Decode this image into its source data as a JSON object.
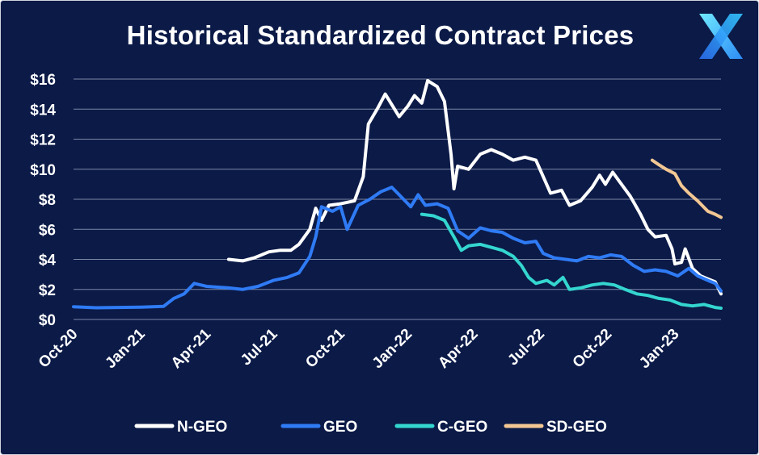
{
  "chart_data": {
    "type": "line",
    "title": "Historical Standardized Contract Prices",
    "xlabel": "",
    "ylabel": "",
    "ylim": [
      0,
      16
    ],
    "y_ticks": [
      "$0",
      "$2",
      "$4",
      "$6",
      "$8",
      "$10",
      "$12",
      "$14",
      "$16"
    ],
    "y_tick_values": [
      0,
      2,
      4,
      6,
      8,
      10,
      12,
      14,
      16
    ],
    "x_ticks": [
      "Oct-20",
      "Jan-21",
      "Apr-21",
      "Jul-21",
      "Oct-21",
      "Jan-22",
      "Apr-22",
      "Jul-22",
      "Oct-22",
      "Jan-23"
    ],
    "x_tick_dates": [
      "2020-10-01",
      "2021-01-01",
      "2021-04-01",
      "2021-07-01",
      "2021-10-01",
      "2022-01-01",
      "2022-04-01",
      "2022-07-01",
      "2022-10-01",
      "2023-01-01"
    ],
    "grid": "horizontal",
    "legend": "bottom",
    "series": [
      {
        "name": "N-GEO",
        "color": "#ffffff",
        "points": [
          [
            "2021-05-01",
            4.0
          ],
          [
            "2021-05-20",
            3.9
          ],
          [
            "2021-06-05",
            4.1
          ],
          [
            "2021-06-25",
            4.5
          ],
          [
            "2021-07-10",
            4.6
          ],
          [
            "2021-07-25",
            4.6
          ],
          [
            "2021-08-05",
            5.0
          ],
          [
            "2021-08-20",
            6.0
          ],
          [
            "2021-08-28",
            7.4
          ],
          [
            "2021-09-05",
            6.6
          ],
          [
            "2021-09-15",
            7.6
          ],
          [
            "2021-10-01",
            7.7
          ],
          [
            "2021-10-20",
            7.9
          ],
          [
            "2021-11-01",
            9.5
          ],
          [
            "2021-11-08",
            13.0
          ],
          [
            "2021-11-20",
            14.0
          ],
          [
            "2021-12-01",
            15.0
          ],
          [
            "2021-12-10",
            14.3
          ],
          [
            "2021-12-20",
            13.5
          ],
          [
            "2022-01-01",
            14.2
          ],
          [
            "2022-01-10",
            14.9
          ],
          [
            "2022-01-20",
            14.4
          ],
          [
            "2022-01-28",
            15.9
          ],
          [
            "2022-02-10",
            15.5
          ],
          [
            "2022-02-20",
            14.5
          ],
          [
            "2022-03-01",
            11.0
          ],
          [
            "2022-03-05",
            8.7
          ],
          [
            "2022-03-10",
            10.2
          ],
          [
            "2022-03-25",
            10.0
          ],
          [
            "2022-04-10",
            11.0
          ],
          [
            "2022-04-25",
            11.3
          ],
          [
            "2022-05-10",
            11.0
          ],
          [
            "2022-05-25",
            10.6
          ],
          [
            "2022-06-10",
            10.8
          ],
          [
            "2022-06-25",
            10.6
          ],
          [
            "2022-07-05",
            9.5
          ],
          [
            "2022-07-15",
            8.4
          ],
          [
            "2022-07-30",
            8.6
          ],
          [
            "2022-08-10",
            7.6
          ],
          [
            "2022-08-25",
            7.9
          ],
          [
            "2022-09-10",
            8.8
          ],
          [
            "2022-09-20",
            9.6
          ],
          [
            "2022-09-28",
            9.0
          ],
          [
            "2022-10-08",
            9.8
          ],
          [
            "2022-10-20",
            9.0
          ],
          [
            "2022-11-01",
            8.2
          ],
          [
            "2022-11-15",
            7.0
          ],
          [
            "2022-11-25",
            6.0
          ],
          [
            "2022-12-05",
            5.5
          ],
          [
            "2022-12-20",
            5.6
          ],
          [
            "2022-12-28",
            4.7
          ],
          [
            "2023-01-01",
            3.7
          ],
          [
            "2023-01-10",
            3.8
          ],
          [
            "2023-01-15",
            4.7
          ],
          [
            "2023-01-25",
            3.4
          ],
          [
            "2023-02-05",
            2.9
          ],
          [
            "2023-02-15",
            2.7
          ],
          [
            "2023-02-25",
            2.5
          ],
          [
            "2023-03-05",
            1.7
          ]
        ]
      },
      {
        "name": "GEO",
        "color": "#2f7bf5",
        "points": [
          [
            "2020-10-01",
            0.85
          ],
          [
            "2020-11-01",
            0.78
          ],
          [
            "2020-12-01",
            0.8
          ],
          [
            "2021-01-01",
            0.82
          ],
          [
            "2021-02-01",
            0.87
          ],
          [
            "2021-02-15",
            1.4
          ],
          [
            "2021-03-01",
            1.7
          ],
          [
            "2021-03-15",
            2.4
          ],
          [
            "2021-04-01",
            2.2
          ],
          [
            "2021-05-01",
            2.1
          ],
          [
            "2021-05-20",
            2.0
          ],
          [
            "2021-06-10",
            2.2
          ],
          [
            "2021-07-01",
            2.6
          ],
          [
            "2021-07-20",
            2.8
          ],
          [
            "2021-08-05",
            3.1
          ],
          [
            "2021-08-20",
            4.2
          ],
          [
            "2021-08-28",
            5.5
          ],
          [
            "2021-09-05",
            7.5
          ],
          [
            "2021-09-20",
            7.2
          ],
          [
            "2021-10-01",
            7.5
          ],
          [
            "2021-10-10",
            6.0
          ],
          [
            "2021-10-25",
            7.6
          ],
          [
            "2021-11-10",
            8.0
          ],
          [
            "2021-11-25",
            8.5
          ],
          [
            "2021-12-10",
            8.8
          ],
          [
            "2021-12-20",
            8.3
          ],
          [
            "2022-01-05",
            7.5
          ],
          [
            "2022-01-15",
            8.3
          ],
          [
            "2022-01-25",
            7.6
          ],
          [
            "2022-02-10",
            7.7
          ],
          [
            "2022-02-25",
            7.4
          ],
          [
            "2022-03-10",
            5.9
          ],
          [
            "2022-03-25",
            5.4
          ],
          [
            "2022-04-10",
            6.1
          ],
          [
            "2022-04-25",
            5.9
          ],
          [
            "2022-05-10",
            5.8
          ],
          [
            "2022-05-25",
            5.4
          ],
          [
            "2022-06-10",
            5.1
          ],
          [
            "2022-06-25",
            5.2
          ],
          [
            "2022-07-05",
            4.4
          ],
          [
            "2022-07-20",
            4.1
          ],
          [
            "2022-08-05",
            4.0
          ],
          [
            "2022-08-20",
            3.9
          ],
          [
            "2022-09-05",
            4.2
          ],
          [
            "2022-09-20",
            4.1
          ],
          [
            "2022-10-05",
            4.3
          ],
          [
            "2022-10-20",
            4.2
          ],
          [
            "2022-11-05",
            3.6
          ],
          [
            "2022-11-20",
            3.2
          ],
          [
            "2022-12-05",
            3.3
          ],
          [
            "2022-12-20",
            3.2
          ],
          [
            "2023-01-05",
            2.9
          ],
          [
            "2023-01-20",
            3.4
          ],
          [
            "2023-02-01",
            2.9
          ],
          [
            "2023-02-15",
            2.6
          ],
          [
            "2023-02-25",
            2.4
          ],
          [
            "2023-03-05",
            1.9
          ]
        ]
      },
      {
        "name": "C-GEO",
        "color": "#34d6cf",
        "points": [
          [
            "2022-01-20",
            7.0
          ],
          [
            "2022-02-05",
            6.9
          ],
          [
            "2022-02-20",
            6.6
          ],
          [
            "2022-03-05",
            5.5
          ],
          [
            "2022-03-15",
            4.6
          ],
          [
            "2022-03-25",
            4.9
          ],
          [
            "2022-04-10",
            5.0
          ],
          [
            "2022-04-25",
            4.8
          ],
          [
            "2022-05-10",
            4.6
          ],
          [
            "2022-05-25",
            4.2
          ],
          [
            "2022-06-05",
            3.6
          ],
          [
            "2022-06-15",
            2.8
          ],
          [
            "2022-06-25",
            2.4
          ],
          [
            "2022-07-10",
            2.6
          ],
          [
            "2022-07-20",
            2.3
          ],
          [
            "2022-08-01",
            2.8
          ],
          [
            "2022-08-10",
            2.0
          ],
          [
            "2022-08-25",
            2.1
          ],
          [
            "2022-09-10",
            2.3
          ],
          [
            "2022-09-25",
            2.4
          ],
          [
            "2022-10-10",
            2.3
          ],
          [
            "2022-10-25",
            2.0
          ],
          [
            "2022-11-10",
            1.7
          ],
          [
            "2022-11-25",
            1.6
          ],
          [
            "2022-12-10",
            1.4
          ],
          [
            "2022-12-25",
            1.3
          ],
          [
            "2023-01-10",
            1.0
          ],
          [
            "2023-01-25",
            0.9
          ],
          [
            "2023-02-10",
            1.0
          ],
          [
            "2023-02-25",
            0.8
          ],
          [
            "2023-03-05",
            0.75
          ]
        ]
      },
      {
        "name": "SD-GEO",
        "color": "#f2c793",
        "points": [
          [
            "2022-12-01",
            10.6
          ],
          [
            "2022-12-10",
            10.3
          ],
          [
            "2022-12-20",
            10.0
          ],
          [
            "2023-01-01",
            9.7
          ],
          [
            "2023-01-10",
            8.9
          ],
          [
            "2023-01-20",
            8.4
          ],
          [
            "2023-02-01",
            7.9
          ],
          [
            "2023-02-15",
            7.2
          ],
          [
            "2023-02-25",
            7.0
          ],
          [
            "2023-03-05",
            6.8
          ]
        ]
      }
    ]
  },
  "logo": {
    "name": "X logo",
    "colors": [
      "#5ee0ff",
      "#2fb0ff",
      "#2b7bf5"
    ]
  }
}
